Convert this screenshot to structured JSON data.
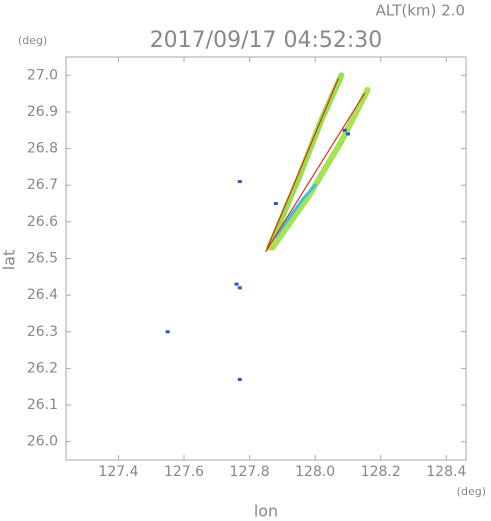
{
  "chart_data": {
    "type": "scatter",
    "subtitle": "ALT(km) 2.0",
    "title": "2017/09/17 04:52:30",
    "y_unit": "(deg)",
    "x_unit": "(deg)",
    "xlabel": "lon",
    "ylabel": "lat",
    "xlim": [
      127.24,
      128.46
    ],
    "ylim": [
      25.95,
      27.05
    ],
    "xticks": [
      127.4,
      127.6,
      127.8,
      {
        "value": 128.0,
        "label": "128.0"
      },
      128.2,
      128.4
    ],
    "yticks": [
      {
        "value": 26.0,
        "label": "26.0"
      },
      26.1,
      26.2,
      26.3,
      26.4,
      26.5,
      26.6,
      26.7,
      26.8,
      26.9,
      {
        "value": 27.0,
        "label": "27.0"
      }
    ],
    "series": [
      {
        "color": "#96e04c",
        "linewidth": 6,
        "x": [
          127.86,
          127.95,
          128.02,
          128.08
        ],
        "y": [
          26.53,
          26.72,
          26.88,
          27.0
        ]
      },
      {
        "color": "#a6e252",
        "linewidth": 6,
        "x": [
          127.87,
          127.98,
          128.08,
          128.16
        ],
        "y": [
          26.53,
          26.67,
          26.82,
          26.96
        ]
      },
      {
        "color": "#40c0e0",
        "linewidth": 3,
        "x": [
          127.88,
          127.96,
          128.0
        ],
        "y": [
          26.56,
          26.66,
          26.7
        ]
      },
      {
        "color": "#e03020",
        "linewidth": 1.2,
        "x": [
          127.85,
          128.07
        ],
        "y": [
          26.52,
          26.99
        ]
      },
      {
        "color": "#e03020",
        "linewidth": 1.2,
        "x": [
          127.85,
          128.15
        ],
        "y": [
          26.52,
          26.95
        ]
      },
      {
        "color": "#3050d0",
        "x": [
          127.77,
          127.76,
          127.77,
          127.88,
          128.09,
          128.1,
          127.55,
          127.77
        ],
        "y": [
          26.71,
          26.43,
          26.42,
          26.65,
          26.85,
          26.84,
          26.3,
          26.17
        ]
      }
    ]
  }
}
